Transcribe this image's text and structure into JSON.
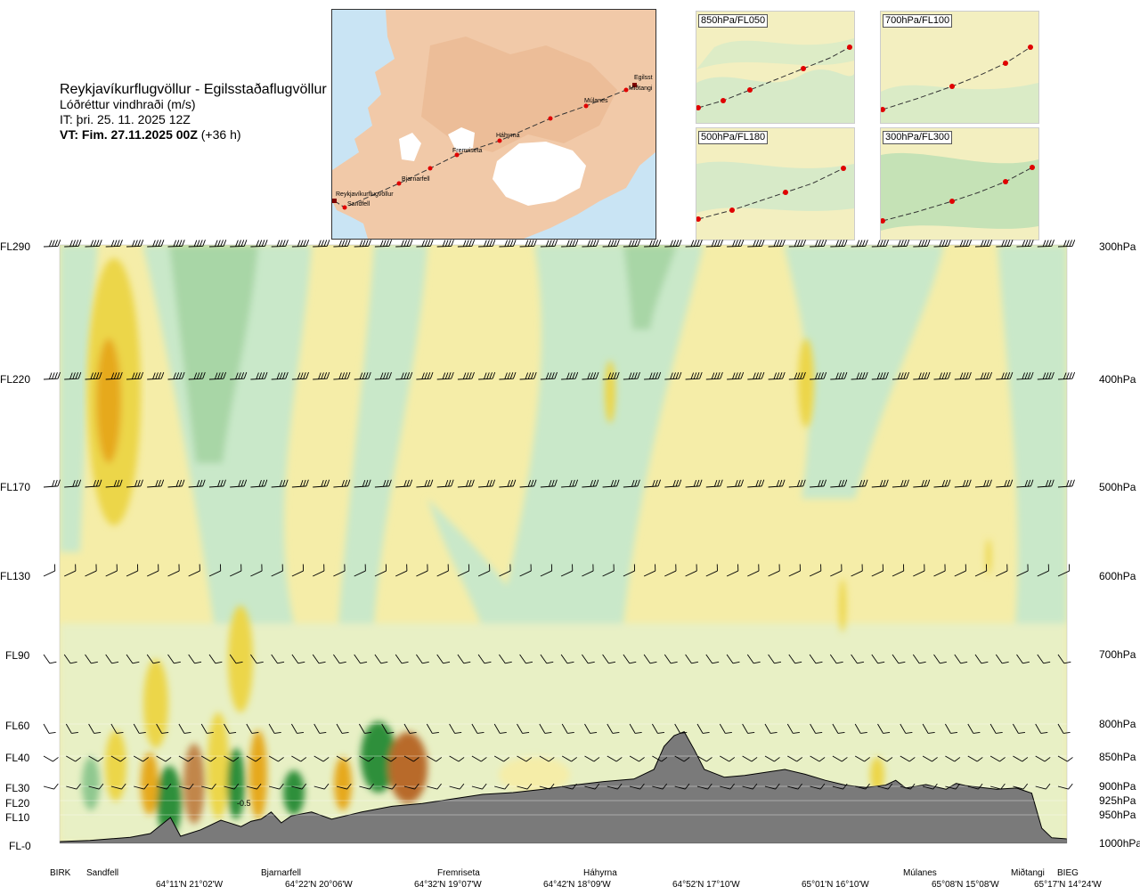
{
  "title": {
    "route": "Reykjavíkurflugvöllur - Egilsstaðaflugvöllur",
    "variable": "Lóðréttur vindhraði (m/s)",
    "issue": "IT: þri. 25. 11. 2025 12Z",
    "valid_bold": "VT: Fim. 27.11.2025 00Z",
    "valid_lead": "(+36 h)"
  },
  "map": {
    "stations": [
      "Reykjavíkurflugvöllur",
      "Sandfell",
      "Bjarnarfell",
      "Fremriseta",
      "Háhyrna",
      "Múlanes",
      "Miðtangi",
      "Egilsst"
    ],
    "land_color": "#f1c9a8",
    "sea_color": "#c9e4f4",
    "ice_color": "#ffffff",
    "route_color": "#c00000"
  },
  "insets": [
    {
      "label": "850hPa/FL050"
    },
    {
      "label": "700hPa/FL100"
    },
    {
      "label": "500hPa/FL180"
    },
    {
      "label": "300hPa/FL300"
    }
  ],
  "chart_data": {
    "type": "heatmap",
    "variable": "Lóðréttur vindhraði (m/s)",
    "left_levels": [
      "FL290",
      "FL220",
      "FL170",
      "FL130",
      "FL90",
      "FL60",
      "FL40",
      "FL30",
      "FL20",
      "FL10",
      "FL-0"
    ],
    "right_levels": [
      "300hPa",
      "400hPa",
      "500hPa",
      "600hPa",
      "700hPa",
      "800hPa",
      "850hPa",
      "900hPa",
      "925hPa",
      "950hPa",
      "1000hPa"
    ],
    "pressure_hpa": [
      300,
      400,
      500,
      600,
      700,
      800,
      850,
      900,
      925,
      950,
      1000
    ],
    "stations": [
      "BIRK",
      "Sandfell",
      "Bjarnarfell",
      "Fremriseta",
      "Háhyrna",
      "Múlanes",
      "Miðtangi",
      "BIEG"
    ],
    "coordinates": [
      "64°11'N 21°02'W",
      "64°22'N 20°06'W",
      "64°32'N 19°07'W",
      "64°42'N 18°09'W",
      "64°52'N 17°10'W",
      "65°01'N 16°10'W",
      "65°08'N 15°08'W",
      "65°17'N 14°24'W"
    ],
    "colors": {
      "down_strong": "#2f8f3a",
      "down_moderate": "#8fc88f",
      "down_weak": "#c9e8c9",
      "near_zero": "#f6fbe8",
      "up_weak": "#f5eda8",
      "up_moderate": "#ecd64a",
      "up_strong": "#e6a91c",
      "up_very_strong": "#b86a2a",
      "terrain": "#7a7a7a"
    },
    "terrain_hpa": [
      [
        0.0,
        1000
      ],
      [
        0.03,
        998
      ],
      [
        0.07,
        992
      ],
      [
        0.09,
        985
      ],
      [
        0.11,
        955
      ],
      [
        0.12,
        990
      ],
      [
        0.14,
        978
      ],
      [
        0.16,
        960
      ],
      [
        0.18,
        972
      ],
      [
        0.19,
        962
      ],
      [
        0.2,
        958
      ],
      [
        0.21,
        945
      ],
      [
        0.22,
        965
      ],
      [
        0.23,
        952
      ],
      [
        0.25,
        945
      ],
      [
        0.27,
        958
      ],
      [
        0.3,
        945
      ],
      [
        0.33,
        935
      ],
      [
        0.36,
        930
      ],
      [
        0.39,
        922
      ],
      [
        0.42,
        914
      ],
      [
        0.45,
        911
      ],
      [
        0.48,
        905
      ],
      [
        0.51,
        898
      ],
      [
        0.54,
        892
      ],
      [
        0.57,
        888
      ],
      [
        0.59,
        872
      ],
      [
        0.6,
        835
      ],
      [
        0.61,
        818
      ],
      [
        0.62,
        812
      ],
      [
        0.63,
        840
      ],
      [
        0.64,
        872
      ],
      [
        0.66,
        885
      ],
      [
        0.68,
        882
      ],
      [
        0.7,
        877
      ],
      [
        0.72,
        872
      ],
      [
        0.74,
        880
      ],
      [
        0.76,
        890
      ],
      [
        0.78,
        898
      ],
      [
        0.8,
        902
      ],
      [
        0.82,
        898
      ],
      [
        0.83,
        890
      ],
      [
        0.84,
        903
      ],
      [
        0.86,
        897
      ],
      [
        0.88,
        905
      ],
      [
        0.89,
        895
      ],
      [
        0.9,
        899
      ],
      [
        0.93,
        905
      ],
      [
        0.95,
        903
      ],
      [
        0.965,
        912
      ],
      [
        0.975,
        975
      ],
      [
        0.985,
        993
      ],
      [
        1.0,
        995
      ]
    ],
    "cells": [
      {
        "x": 0.04,
        "p": 450,
        "value": 2.0
      },
      {
        "x": 0.09,
        "p": 910,
        "value": -2.0
      },
      {
        "x": 0.11,
        "p": 915,
        "value": 1.5
      },
      {
        "x": 0.14,
        "p": 905,
        "value": 1.0
      },
      {
        "x": 0.17,
        "p": 905,
        "value": -2.0
      },
      {
        "x": 0.19,
        "p": 800,
        "value": 1.0
      },
      {
        "x": 0.23,
        "p": 880,
        "value": 1.0
      },
      {
        "x": 0.29,
        "p": 850,
        "value": -2.0
      },
      {
        "x": 0.31,
        "p": 860,
        "value": 2.5
      },
      {
        "x": 0.55,
        "p": 400,
        "value": 0.5
      },
      {
        "x": 0.64,
        "p": 330,
        "value": -0.5
      },
      {
        "x": 0.74,
        "p": 400,
        "value": 0.5
      },
      {
        "x": 0.79,
        "p": 680,
        "value": 0.5
      },
      {
        "x": 0.91,
        "p": 630,
        "value": 0.5
      },
      {
        "x": 0.85,
        "p": 900,
        "value": 0.5
      }
    ],
    "contour_label": "-0.5"
  }
}
